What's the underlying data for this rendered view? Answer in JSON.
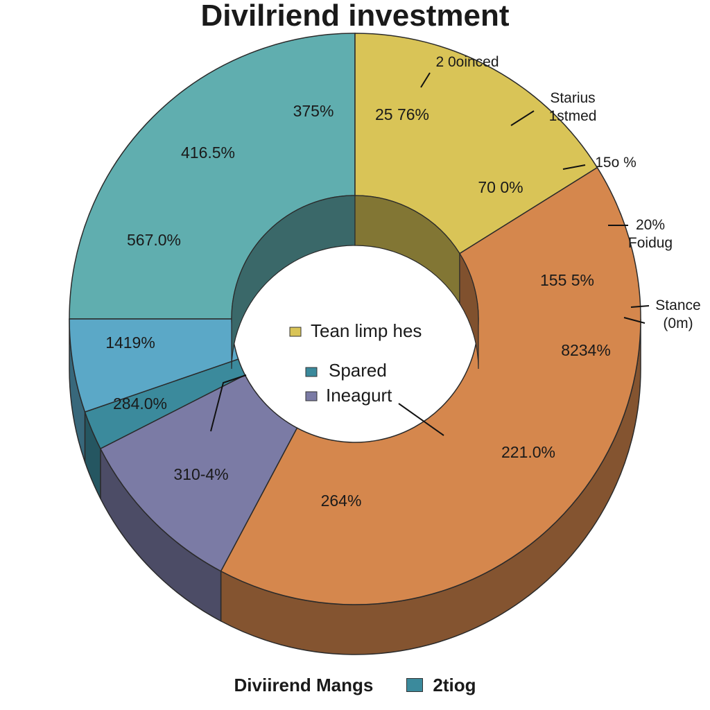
{
  "chart_data": {
    "type": "pie",
    "title": "Divilriend investment",
    "style": "3d donut",
    "slices": [
      {
        "color": "#60aeaf",
        "labels": [
          "375%",
          "416.5%"
        ]
      },
      {
        "color": "#d9c457",
        "labels": [
          "25 76%",
          "70 0%"
        ]
      },
      {
        "color": "#d5874d",
        "labels": [
          "155 5%",
          "8234%",
          "221.0%",
          "264%"
        ]
      },
      {
        "color": "#7b7ba5",
        "labels": [
          "310-4%"
        ]
      },
      {
        "color": "#3b8a9c",
        "labels": [
          "284.0%"
        ]
      },
      {
        "color": "#5ba8c7",
        "labels": [
          "567.0%",
          "1419%"
        ]
      }
    ],
    "callouts": [
      {
        "lines": [
          "2 0oinced"
        ]
      },
      {
        "lines": [
          "Starius",
          "1stmed"
        ]
      },
      {
        "lines": [
          "15o %"
        ]
      },
      {
        "lines": [
          "20%",
          "Foidug"
        ]
      },
      {
        "lines": [
          "Stance",
          "(0m)"
        ]
      }
    ],
    "inner_legend": [
      {
        "label": "Tean limp hes",
        "color": "#d9c457"
      },
      {
        "label": "Spared",
        "color": "#3b8a9c"
      },
      {
        "label": "Ineagurt",
        "color": "#7b7ba5"
      }
    ],
    "bottom_legend": [
      {
        "label": "Diviirend  Mangs",
        "color": ""
      },
      {
        "label": "2tiog",
        "color": "#3b8a9c"
      }
    ]
  }
}
